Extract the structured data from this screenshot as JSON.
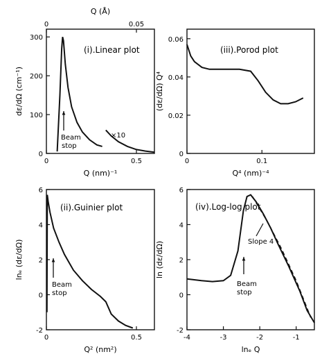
{
  "chart_data": [
    {
      "panel_title": "(i).Linear plot",
      "type": "line",
      "xlabel": "Q (nm)⁻¹",
      "ylabel": "dε/dΩ (cm⁻¹)",
      "top_axis_label": "Q (Å)",
      "xlim": [
        0,
        0.6
      ],
      "ylim": [
        0,
        320
      ],
      "x_ticks": [
        "0",
        "0.5"
      ],
      "y_ticks": [
        "0",
        "100",
        "200",
        "300"
      ],
      "top_ticks": [
        "0",
        "0.05"
      ],
      "annotations": [
        {
          "text": "Beam",
          "x": 0.1,
          "y": 45
        },
        {
          "text": "stop",
          "x": 0.1,
          "y": 20
        },
        {
          "text": "×10",
          "x": 0.39,
          "y": 70
        }
      ],
      "series": [
        {
          "x": [
            0.06,
            0.075,
            0.085,
            0.09,
            0.095,
            0.105,
            0.12,
            0.14,
            0.17,
            0.2,
            0.24,
            0.28,
            0.31
          ],
          "y": [
            5,
            150,
            270,
            300,
            290,
            230,
            170,
            120,
            80,
            55,
            35,
            22,
            18
          ]
        },
        {
          "x": [
            0.33,
            0.36,
            0.4,
            0.45,
            0.5,
            0.55,
            0.6
          ],
          "y": [
            60,
            45,
            30,
            18,
            10,
            6,
            3
          ]
        }
      ]
    },
    {
      "panel_title": "(iii).Porod plot",
      "type": "line",
      "xlabel": "Q⁴ (nm)⁻⁴",
      "ylabel": "(dε/dΩ) Q⁴",
      "xlim": [
        0,
        0.17
      ],
      "ylim": [
        0,
        0.065
      ],
      "x_ticks": [
        "0",
        "0.1"
      ],
      "y_ticks": [
        "0",
        "0.02",
        "0.04",
        "0.06"
      ],
      "series": [
        {
          "x": [
            0,
            0.005,
            0.01,
            0.02,
            0.03,
            0.05,
            0.07,
            0.085,
            0.095,
            0.105,
            0.115,
            0.125,
            0.135,
            0.145,
            0.155
          ],
          "y": [
            0.057,
            0.051,
            0.048,
            0.045,
            0.044,
            0.044,
            0.044,
            0.043,
            0.038,
            0.032,
            0.028,
            0.026,
            0.026,
            0.027,
            0.029
          ]
        }
      ]
    },
    {
      "panel_title": "(ii).Guinier plot",
      "type": "line",
      "xlabel": "Q² (nm²)",
      "ylabel": "lnₑ (dε/dΩ)",
      "xlim": [
        0,
        0.6
      ],
      "ylim": [
        -2,
        6
      ],
      "x_ticks": [
        "0",
        "0.5"
      ],
      "y_ticks": [
        "-2",
        "0",
        "2",
        "4",
        "6"
      ],
      "annotations": [
        {
          "text": "Beam",
          "x": 0.05,
          "y": 0.6
        },
        {
          "text": "stop",
          "x": 0.05,
          "y": 0.0
        }
      ],
      "series": [
        {
          "x": [
            0.003,
            0.005,
            0.01,
            0.02,
            0.04,
            0.07,
            0.1,
            0.15,
            0.2,
            0.25,
            0.3,
            0.33,
            0.36,
            0.4,
            0.44,
            0.48
          ],
          "y": [
            -1.0,
            5.7,
            5.3,
            4.7,
            3.8,
            3.0,
            2.3,
            1.4,
            0.8,
            0.3,
            -0.1,
            -0.4,
            -1.1,
            -1.5,
            -1.75,
            -1.9
          ]
        }
      ]
    },
    {
      "panel_title": "(iv).Log-log plot",
      "type": "line",
      "xlabel": "lnₑ Q",
      "ylabel": "ln (dε/dΩ)",
      "xlim": [
        -4,
        -0.5
      ],
      "ylim": [
        -2,
        6
      ],
      "x_ticks": [
        "-4",
        "-3",
        "-2",
        "-1"
      ],
      "y_ticks": [
        "-2",
        "0",
        "2",
        "4",
        "6"
      ],
      "annotations": [
        {
          "text": "Slope 4",
          "x": -1.85,
          "y": 3.3
        },
        {
          "text": "Beam",
          "x": -2.6,
          "y": 1.0
        },
        {
          "text": "stop",
          "x": -2.6,
          "y": 0.45
        }
      ],
      "series": [
        {
          "x": [
            -4.0,
            -3.6,
            -3.3,
            -3.0,
            -2.8,
            -2.6,
            -2.45,
            -2.35,
            -2.25,
            -2.1,
            -1.9,
            -1.7,
            -1.5,
            -1.2,
            -0.9,
            -0.7,
            -0.5
          ],
          "y": [
            0.9,
            0.8,
            0.75,
            0.8,
            1.1,
            2.5,
            4.8,
            5.6,
            5.7,
            5.3,
            4.6,
            3.8,
            2.9,
            1.6,
            0.2,
            -0.9,
            -1.6
          ]
        },
        {
          "x": [
            -2.2,
            -1.8,
            -1.4,
            -1.0,
            -0.6
          ],
          "y": [
            5.6,
            4.2,
            2.6,
            0.8,
            -1.3
          ]
        }
      ]
    }
  ]
}
